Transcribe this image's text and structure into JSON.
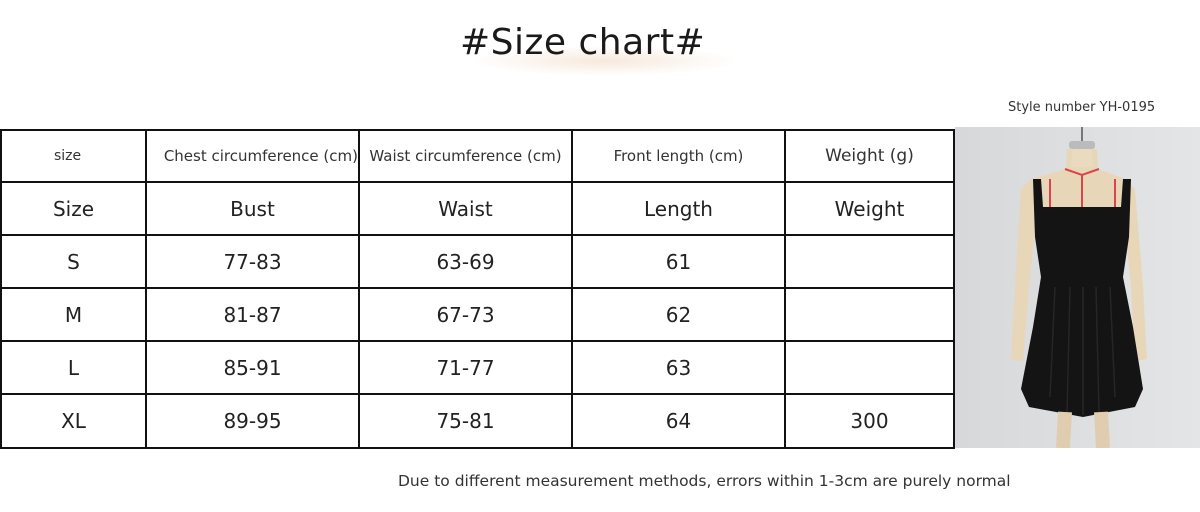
{
  "title": "#Size chart#",
  "style_number": "Style number YH-0195",
  "table": {
    "header": [
      "size",
      "Chest circumference (cm)",
      "Waist circumference (cm)",
      "Front length (cm)",
      "Weight (g)"
    ],
    "subheader": [
      "Size",
      "Bust",
      "Waist",
      "Length",
      "Weight"
    ],
    "rows": [
      [
        "S",
        "77-83",
        "63-69",
        "61",
        ""
      ],
      [
        "M",
        "81-87",
        "67-73",
        "62",
        ""
      ],
      [
        "L",
        "85-91",
        "71-77",
        "63",
        ""
      ],
      [
        "XL",
        "89-95",
        "75-81",
        "64",
        "300"
      ]
    ]
  },
  "product_image": "black velvet sleeveless dress on mannequin",
  "note": "Due to different measurement methods, errors within 1-3cm are purely normal"
}
